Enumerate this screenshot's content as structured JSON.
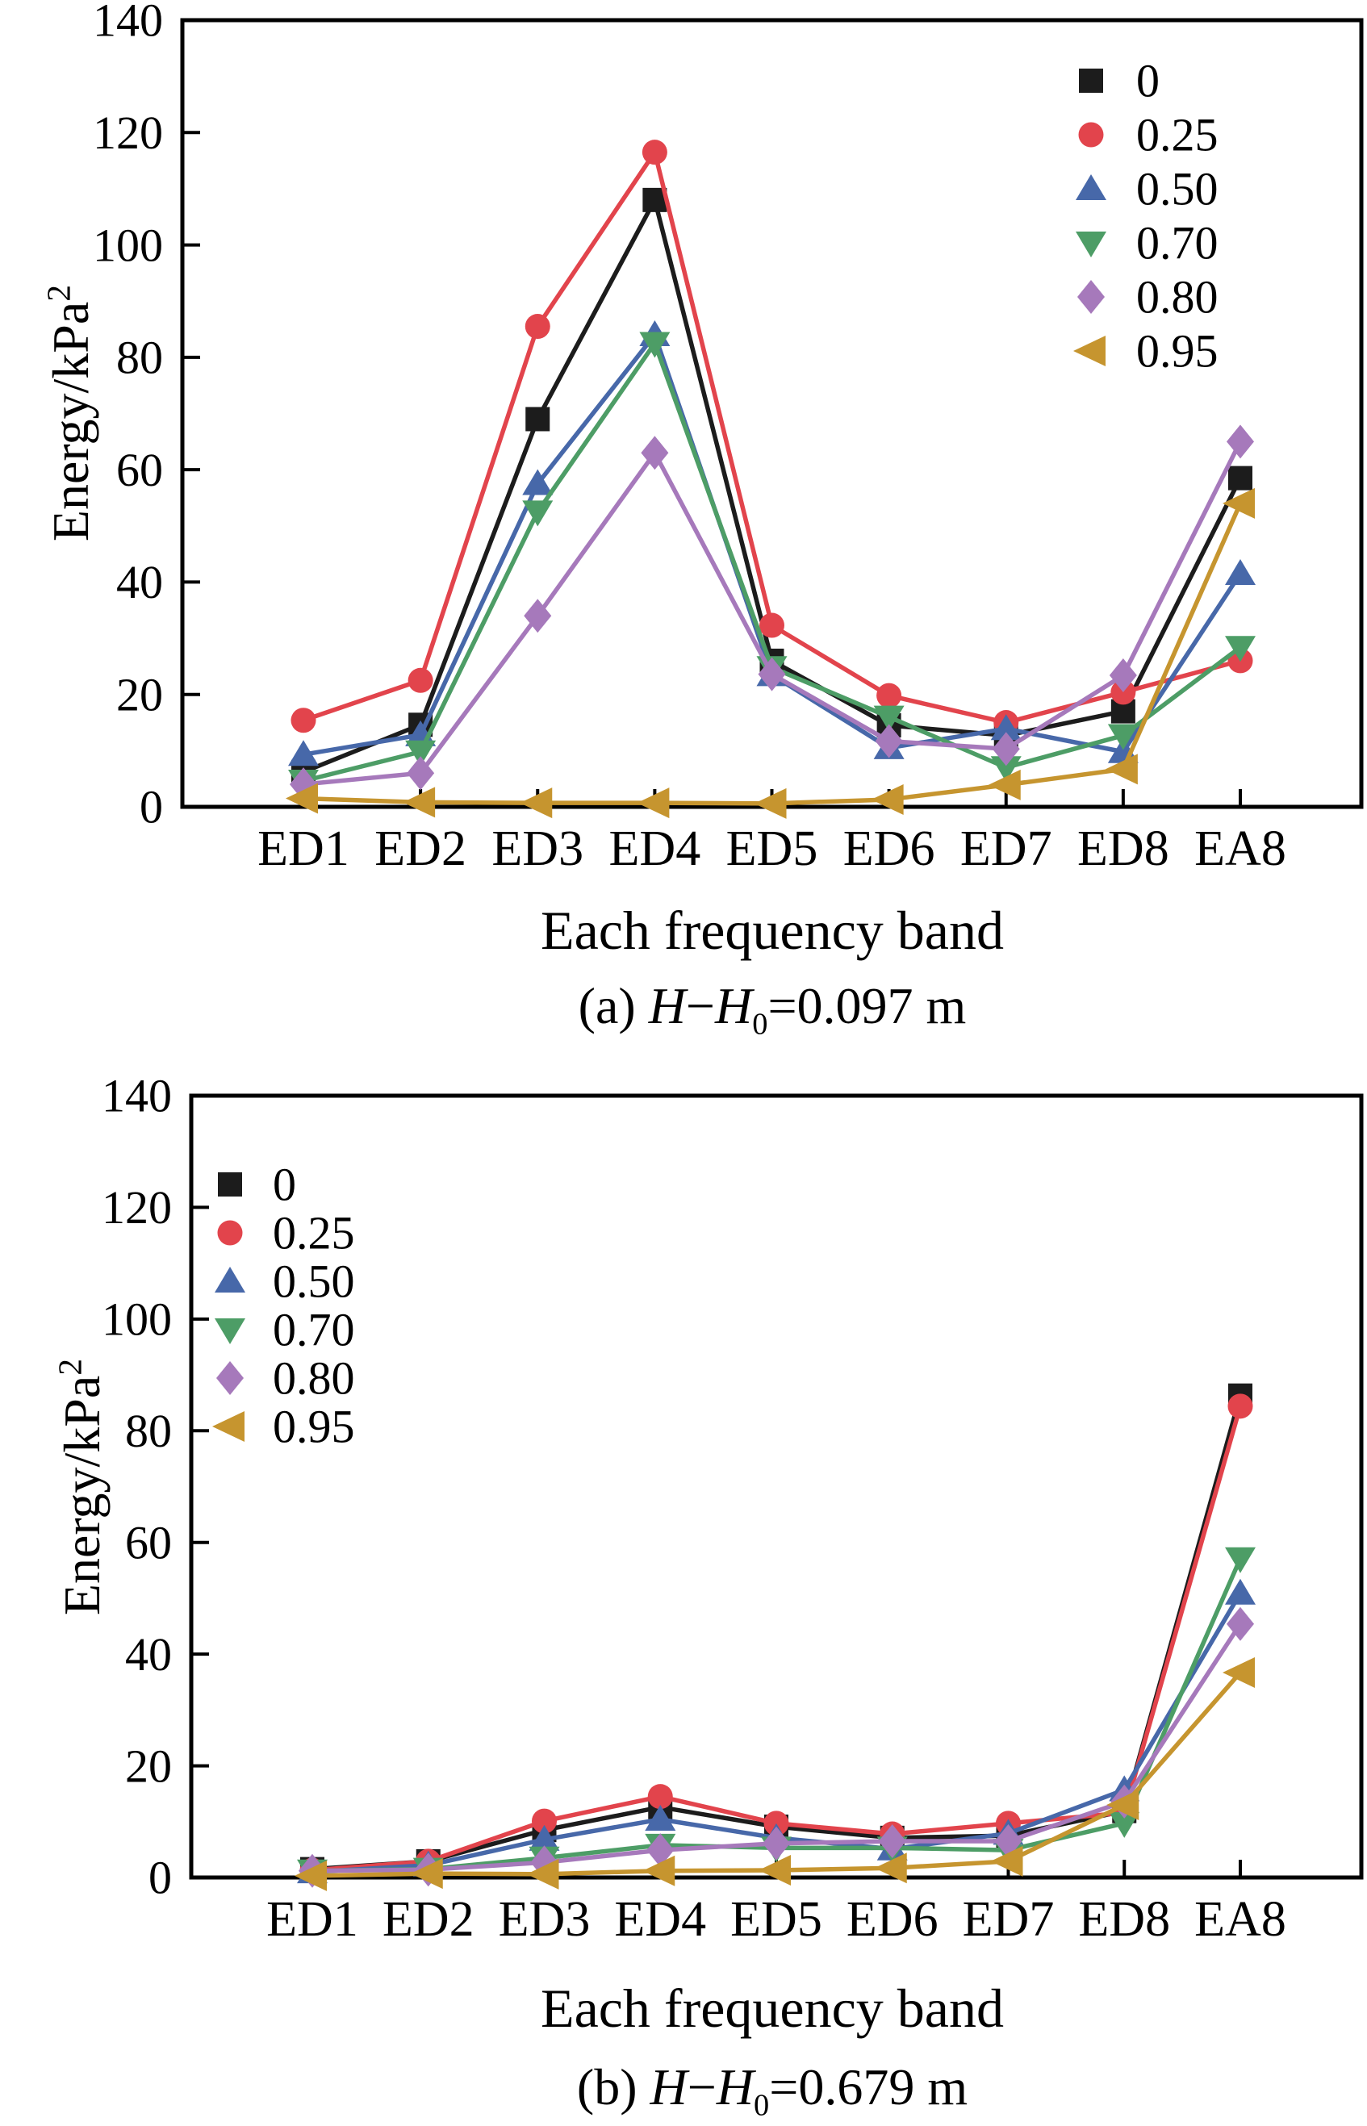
{
  "chart_data": [
    {
      "id": "a",
      "type": "line",
      "title": "(a) H−H0=0.097 m",
      "caption_parts": {
        "prefix": "(a) ",
        "var": "H",
        "minus": "−",
        "sub": "0",
        "suffix": "=0.097 m"
      },
      "xlabel": "Each frequency band",
      "ylabel": "Energy/kPa",
      "ylabel_sup": "2",
      "ylim": [
        0,
        140
      ],
      "yticks": [
        0,
        20,
        40,
        60,
        80,
        100,
        120,
        140
      ],
      "grid": false,
      "legend_position": "top-right",
      "categories": [
        "ED1",
        "ED2",
        "ED3",
        "ED4",
        "ED5",
        "ED6",
        "ED7",
        "ED8",
        "EA8"
      ],
      "series": [
        {
          "name": "0",
          "marker": "square",
          "color": "#1c1c1c",
          "values": [
            6.2,
            14.6,
            69,
            108,
            26,
            14.5,
            12.7,
            17,
            58.5
          ]
        },
        {
          "name": "0.25",
          "marker": "circle",
          "color": "#e2444c",
          "values": [
            15.4,
            22.5,
            85.5,
            116.5,
            32.3,
            19.8,
            15,
            20.4,
            26
          ]
        },
        {
          "name": "0.50",
          "marker": "triangle-up",
          "color": "#4768a9",
          "values": [
            9.3,
            12.8,
            57.5,
            84,
            23.5,
            10.5,
            13.9,
            9.8,
            41.5
          ]
        },
        {
          "name": "0.70",
          "marker": "triangle-down",
          "color": "#4d9d66",
          "values": [
            4.6,
            9.8,
            52.5,
            82.5,
            24.8,
            16,
            7,
            12.7,
            28.4
          ]
        },
        {
          "name": "0.80",
          "marker": "diamond",
          "color": "#a679bb",
          "values": [
            4,
            6,
            34,
            63,
            23.6,
            11.7,
            10.3,
            23.4,
            65
          ]
        },
        {
          "name": "0.95",
          "marker": "triangle-left",
          "color": "#c6952f",
          "values": [
            1.5,
            0.8,
            0.7,
            0.7,
            0.6,
            1.3,
            3.9,
            6.7,
            54
          ]
        }
      ]
    },
    {
      "id": "b",
      "type": "line",
      "title": "(b) H−H0=0.679 m",
      "caption_parts": {
        "prefix": "(b) ",
        "var": "H",
        "minus": "−",
        "sub": "0",
        "suffix": "=0.679 m"
      },
      "xlabel": "Each frequency band",
      "ylabel": "Energy/kPa",
      "ylabel_sup": "2",
      "ylim": [
        0,
        140
      ],
      "yticks": [
        0,
        20,
        40,
        60,
        80,
        100,
        120,
        140
      ],
      "grid": false,
      "legend_position": "upper-left",
      "categories": [
        "ED1",
        "ED2",
        "ED3",
        "ED4",
        "ED5",
        "ED6",
        "ED7",
        "ED8",
        "EA8"
      ],
      "series": [
        {
          "name": "0",
          "marker": "square",
          "color": "#1c1c1c",
          "values": [
            1.5,
            2.9,
            8.5,
            12.6,
            9.1,
            7.1,
            7.5,
            11.9,
            86.3
          ]
        },
        {
          "name": "0.25",
          "marker": "circle",
          "color": "#e2444c",
          "values": [
            1.3,
            2.9,
            10.1,
            14.5,
            9.7,
            7.8,
            9.7,
            11.6,
            84.4
          ]
        },
        {
          "name": "0.50",
          "marker": "triangle-up",
          "color": "#4768a9",
          "values": [
            1.0,
            2.2,
            6.8,
            10.4,
            7.1,
            5.1,
            7.9,
            15.7,
            50.9
          ]
        },
        {
          "name": "0.70",
          "marker": "triangle-down",
          "color": "#4d9d66",
          "values": [
            1.2,
            1.5,
            3.5,
            5.8,
            5.3,
            5.3,
            4.9,
            9.7,
            57.1
          ]
        },
        {
          "name": "0.80",
          "marker": "diamond",
          "color": "#a679bb",
          "values": [
            1.2,
            1.4,
            2.7,
            4.9,
            6.1,
            6.5,
            6.5,
            13.6,
            45.4
          ]
        },
        {
          "name": "0.95",
          "marker": "triangle-left",
          "color": "#c6952f",
          "values": [
            0.3,
            0.7,
            0.6,
            1.2,
            1.3,
            1.7,
            2.9,
            13.0,
            36.7
          ]
        }
      ]
    }
  ]
}
